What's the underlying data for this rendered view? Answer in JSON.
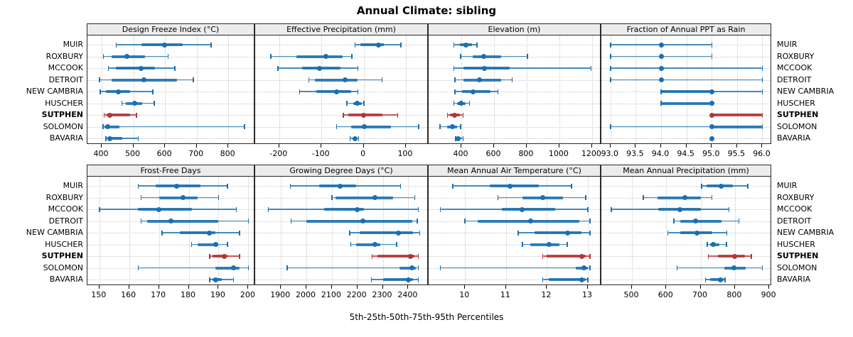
{
  "title": "Annual Climate: sibling",
  "caption": "5th-25th-50th-75th-95th Percentiles",
  "sites": [
    "MUIR",
    "ROXBURY",
    "MCCOOK",
    "DETROIT",
    "NEW CAMBRIA",
    "HUSCHER",
    "SUTPHEN",
    "SOLOMON",
    "BAVARIA"
  ],
  "highlight_site": "SUTPHEN",
  "colors": {
    "series": "#1a6fb0",
    "highlight": "#b23538",
    "grid": "#c9c9c9",
    "strip_bg": "#ececec",
    "border": "#2a2a2a"
  },
  "chart_data": [
    {
      "type": "dotplot-percentile",
      "title": "Design Freeze Index (°C)",
      "row": 0,
      "col": 0,
      "xlim": [
        355,
        885
      ],
      "tick_values": [
        400,
        500,
        600,
        700,
        800
      ],
      "tick_labels": [
        "400",
        "500",
        "600",
        "700",
        "800"
      ],
      "percentile_labels": [
        "5th",
        "25th",
        "50th",
        "75th",
        "95th"
      ],
      "series": [
        {
          "site": "MUIR",
          "percentiles": [
            446,
            525,
            598,
            655,
            746
          ]
        },
        {
          "site": "ROXBURY",
          "percentiles": [
            405,
            431,
            479,
            538,
            610
          ]
        },
        {
          "site": "MCCOOK",
          "percentiles": [
            421,
            445,
            524,
            569,
            631
          ]
        },
        {
          "site": "DETROIT",
          "percentiles": [
            393,
            431,
            533,
            638,
            690
          ]
        },
        {
          "site": "NEW CAMBRIA",
          "percentiles": [
            395,
            414,
            452,
            490,
            562
          ]
        },
        {
          "site": "HUSCHER",
          "percentiles": [
            464,
            476,
            505,
            528,
            566
          ]
        },
        {
          "site": "SUTPHEN",
          "percentiles": [
            408,
            415,
            426,
            490,
            510
          ]
        },
        {
          "site": "SOLOMON",
          "percentiles": [
            404,
            410,
            420,
            456,
            851
          ]
        },
        {
          "site": "BAVARIA",
          "percentiles": [
            413,
            418,
            426,
            466,
            516
          ]
        }
      ]
    },
    {
      "type": "dotplot-percentile",
      "title": "Effective Precipitation (mm)",
      "row": 0,
      "col": 1,
      "xlim": [
        -257,
        154
      ],
      "tick_values": [
        -200,
        -100,
        0,
        100
      ],
      "tick_labels": [
        "-200",
        "-100",
        "0",
        "100"
      ],
      "percentile_labels": [
        "5th",
        "25th",
        "50th",
        "75th",
        "95th"
      ],
      "series": [
        {
          "site": "MUIR",
          "percentiles": [
            -20,
            -7,
            35,
            48,
            88
          ]
        },
        {
          "site": "ROXBURY",
          "percentiles": [
            -220,
            -160,
            -90,
            -50,
            -28
          ]
        },
        {
          "site": "MCCOOK",
          "percentiles": [
            -203,
            -145,
            -105,
            -55,
            -14
          ]
        },
        {
          "site": "DETROIT",
          "percentiles": [
            -130,
            -115,
            -44,
            -14,
            44
          ]
        },
        {
          "site": "NEW CAMBRIA",
          "percentiles": [
            -152,
            -112,
            -64,
            -30,
            -14
          ]
        },
        {
          "site": "HUSCHER",
          "percentiles": [
            -40,
            -25,
            -15,
            -5,
            1
          ]
        },
        {
          "site": "SUTPHEN",
          "percentiles": [
            -48,
            -36,
            0,
            44,
            81
          ]
        },
        {
          "site": "SOLOMON",
          "percentiles": [
            -64,
            -30,
            1,
            65,
            130
          ]
        },
        {
          "site": "BAVARIA",
          "percentiles": [
            -32,
            -25,
            -20,
            -16,
            -12
          ]
        }
      ]
    },
    {
      "type": "dotplot-percentile",
      "title": "Elevation (m)",
      "row": 0,
      "col": 2,
      "xlim": [
        200,
        1257
      ],
      "tick_values": [
        400,
        600,
        800,
        1000,
        1200
      ],
      "tick_labels": [
        "400",
        "600",
        "800",
        "1000",
        "1200"
      ],
      "percentile_labels": [
        "5th",
        "25th",
        "50th",
        "75th",
        "95th"
      ],
      "series": [
        {
          "site": "MUIR",
          "percentiles": [
            355,
            390,
            430,
            465,
            495
          ]
        },
        {
          "site": "ROXBURY",
          "percentiles": [
            395,
            470,
            535,
            645,
            805
          ]
        },
        {
          "site": "MCCOOK",
          "percentiles": [
            355,
            415,
            540,
            695,
            1195
          ]
        },
        {
          "site": "DETROIT",
          "percentiles": [
            360,
            415,
            510,
            645,
            712
          ]
        },
        {
          "site": "NEW CAMBRIA",
          "percentiles": [
            360,
            405,
            470,
            580,
            625
          ]
        },
        {
          "site": "HUSCHER",
          "percentiles": [
            355,
            375,
            400,
            425,
            450
          ]
        },
        {
          "site": "SUTPHEN",
          "percentiles": [
            315,
            330,
            360,
            390,
            410
          ]
        },
        {
          "site": "SOLOMON",
          "percentiles": [
            270,
            315,
            345,
            375,
            395
          ]
        },
        {
          "site": "BAVARIA",
          "percentiles": [
            365,
            372,
            382,
            395,
            410
          ]
        }
      ]
    },
    {
      "type": "dotplot-percentile",
      "title": "Fraction of Annual PPT as Rain",
      "row": 0,
      "col": 3,
      "xlim": [
        92.82,
        96.19
      ],
      "tick_values": [
        93.0,
        93.5,
        94.0,
        94.5,
        95.0,
        95.5,
        96.0
      ],
      "tick_labels": [
        "93.0",
        "93.5",
        "94.0",
        "94.5",
        "95.0",
        "95.5",
        "96.0"
      ],
      "percentile_labels": [
        "5th",
        "25th",
        "50th",
        "75th",
        "95th"
      ],
      "series": [
        {
          "site": "MUIR",
          "percentiles": [
            93,
            94,
            94,
            94,
            95
          ]
        },
        {
          "site": "ROXBURY",
          "percentiles": [
            93,
            94,
            94,
            94,
            95
          ]
        },
        {
          "site": "MCCOOK",
          "percentiles": [
            93,
            94,
            94,
            94,
            96
          ]
        },
        {
          "site": "DETROIT",
          "percentiles": [
            93,
            94,
            94,
            94,
            96
          ]
        },
        {
          "site": "NEW CAMBRIA",
          "percentiles": [
            94,
            94,
            95,
            95,
            96
          ]
        },
        {
          "site": "HUSCHER",
          "percentiles": [
            94,
            94,
            95,
            95,
            95
          ]
        },
        {
          "site": "SUTPHEN",
          "percentiles": [
            95,
            95,
            95,
            96,
            96
          ]
        },
        {
          "site": "SOLOMON",
          "percentiles": [
            93,
            95,
            95,
            96,
            96
          ]
        },
        {
          "site": "BAVARIA",
          "percentiles": [
            95,
            95,
            95,
            95,
            95
          ]
        }
      ]
    },
    {
      "type": "dotplot-percentile",
      "title": "Frost-Free Days",
      "row": 1,
      "col": 0,
      "xlim": [
        146,
        202.3
      ],
      "tick_values": [
        150,
        160,
        170,
        180,
        190,
        200
      ],
      "tick_labels": [
        "150",
        "160",
        "170",
        "180",
        "190",
        "200"
      ],
      "percentile_labels": [
        "5th",
        "25th",
        "50th",
        "75th",
        "95th"
      ],
      "series": [
        {
          "site": "MUIR",
          "percentiles": [
            163,
            169,
            176,
            184,
            193
          ]
        },
        {
          "site": "ROXBURY",
          "percentiles": [
            164,
            170,
            178,
            183,
            190
          ]
        },
        {
          "site": "MCCOOK",
          "percentiles": [
            150,
            163,
            170,
            181,
            196
          ]
        },
        {
          "site": "DETROIT",
          "percentiles": [
            164,
            166,
            174,
            190,
            200
          ]
        },
        {
          "site": "NEW CAMBRIA",
          "percentiles": [
            171,
            177,
            187,
            189,
            197
          ]
        },
        {
          "site": "HUSCHER",
          "percentiles": [
            181,
            183,
            189,
            190,
            193
          ]
        },
        {
          "site": "SUTPHEN",
          "percentiles": [
            187,
            188,
            192,
            193,
            197
          ]
        },
        {
          "site": "SOLOMON",
          "percentiles": [
            163,
            189,
            195,
            197,
            200
          ]
        },
        {
          "site": "BAVARIA",
          "percentiles": [
            187,
            188,
            189,
            191,
            195
          ]
        }
      ]
    },
    {
      "type": "dotplot-percentile",
      "title": "Growing Degree Days (°C)",
      "row": 1,
      "col": 1,
      "xlim": [
        1799,
        2480
      ],
      "tick_values": [
        1900,
        2000,
        2100,
        2200,
        2300,
        2400
      ],
      "tick_labels": [
        "1900",
        "2000",
        "2100",
        "2200",
        "2300",
        "2400"
      ],
      "percentile_labels": [
        "5th",
        "25th",
        "50th",
        "75th",
        "95th"
      ],
      "series": [
        {
          "site": "MUIR",
          "percentiles": [
            1937,
            2050,
            2132,
            2195,
            2370
          ]
        },
        {
          "site": "ROXBURY",
          "percentiles": [
            2100,
            2115,
            2270,
            2340,
            2425
          ]
        },
        {
          "site": "MCCOOK",
          "percentiles": [
            1850,
            2070,
            2200,
            2225,
            2440
          ]
        },
        {
          "site": "DETROIT",
          "percentiles": [
            1940,
            2000,
            2223,
            2415,
            2435
          ]
        },
        {
          "site": "NEW CAMBRIA",
          "percentiles": [
            2170,
            2210,
            2360,
            2420,
            2445
          ]
        },
        {
          "site": "HUSCHER",
          "percentiles": [
            2175,
            2195,
            2270,
            2290,
            2355
          ]
        },
        {
          "site": "SUTPHEN",
          "percentiles": [
            2258,
            2280,
            2410,
            2425,
            2440
          ]
        },
        {
          "site": "SOLOMON",
          "percentiles": [
            1925,
            2365,
            2415,
            2430,
            2440
          ]
        },
        {
          "site": "BAVARIA",
          "percentiles": [
            2255,
            2300,
            2400,
            2420,
            2440
          ]
        }
      ]
    },
    {
      "type": "dotplot-percentile",
      "title": "Mean Annual Air Temperature (°C)",
      "row": 1,
      "col": 2,
      "xlim": [
        9.11,
        13.33
      ],
      "tick_values": [
        10,
        11,
        12,
        13
      ],
      "tick_labels": [
        "10",
        "11",
        "12",
        "13"
      ],
      "percentile_labels": [
        "5th",
        "25th",
        "50th",
        "75th",
        "95th"
      ],
      "series": [
        {
          "site": "MUIR",
          "percentiles": [
            9.7,
            10.6,
            11.1,
            11.8,
            12.6
          ]
        },
        {
          "site": "ROXBURY",
          "percentiles": [
            10.8,
            11.4,
            11.9,
            12.4,
            12.95
          ]
        },
        {
          "site": "MCCOOK",
          "percentiles": [
            9.4,
            10.9,
            11.4,
            12.2,
            13.0
          ]
        },
        {
          "site": "DETROIT",
          "percentiles": [
            10.0,
            10.3,
            11.6,
            12.8,
            13.05
          ]
        },
        {
          "site": "NEW CAMBRIA",
          "percentiles": [
            11.3,
            11.7,
            12.5,
            12.85,
            13.05
          ]
        },
        {
          "site": "HUSCHER",
          "percentiles": [
            11.4,
            11.6,
            12.05,
            12.3,
            12.5
          ]
        },
        {
          "site": "SUTPHEN",
          "percentiles": [
            11.9,
            12.0,
            12.85,
            12.95,
            13.05
          ]
        },
        {
          "site": "SOLOMON",
          "percentiles": [
            9.4,
            12.7,
            12.9,
            13.0,
            13.05
          ]
        },
        {
          "site": "BAVARIA",
          "percentiles": [
            11.9,
            12.05,
            12.85,
            12.95,
            13.0
          ]
        }
      ]
    },
    {
      "type": "dotplot-percentile",
      "title": "Mean Annual Precipitation (mm)",
      "row": 1,
      "col": 3,
      "xlim": [
        411,
        908
      ],
      "tick_values": [
        500,
        600,
        700,
        800,
        900
      ],
      "tick_labels": [
        "500",
        "600",
        "700",
        "800",
        "900"
      ],
      "percentile_labels": [
        "5th",
        "25th",
        "50th",
        "75th",
        "95th"
      ],
      "series": [
        {
          "site": "MUIR",
          "percentiles": [
            703,
            717,
            759,
            795,
            838
          ]
        },
        {
          "site": "ROXBURY",
          "percentiles": [
            533,
            575,
            655,
            700,
            733
          ]
        },
        {
          "site": "MCCOOK",
          "percentiles": [
            440,
            577,
            640,
            700,
            783
          ]
        },
        {
          "site": "DETROIT",
          "percentiles": [
            622,
            640,
            686,
            760,
            812
          ]
        },
        {
          "site": "NEW CAMBRIA",
          "percentiles": [
            605,
            640,
            690,
            735,
            777
          ]
        },
        {
          "site": "HUSCHER",
          "percentiles": [
            720,
            728,
            737,
            755,
            775
          ]
        },
        {
          "site": "SUTPHEN",
          "percentiles": [
            723,
            750,
            800,
            830,
            848
          ]
        },
        {
          "site": "SOLOMON",
          "percentiles": [
            632,
            770,
            797,
            832,
            880
          ]
        },
        {
          "site": "BAVARIA",
          "percentiles": [
            714,
            727,
            757,
            768,
            771
          ]
        }
      ]
    }
  ]
}
